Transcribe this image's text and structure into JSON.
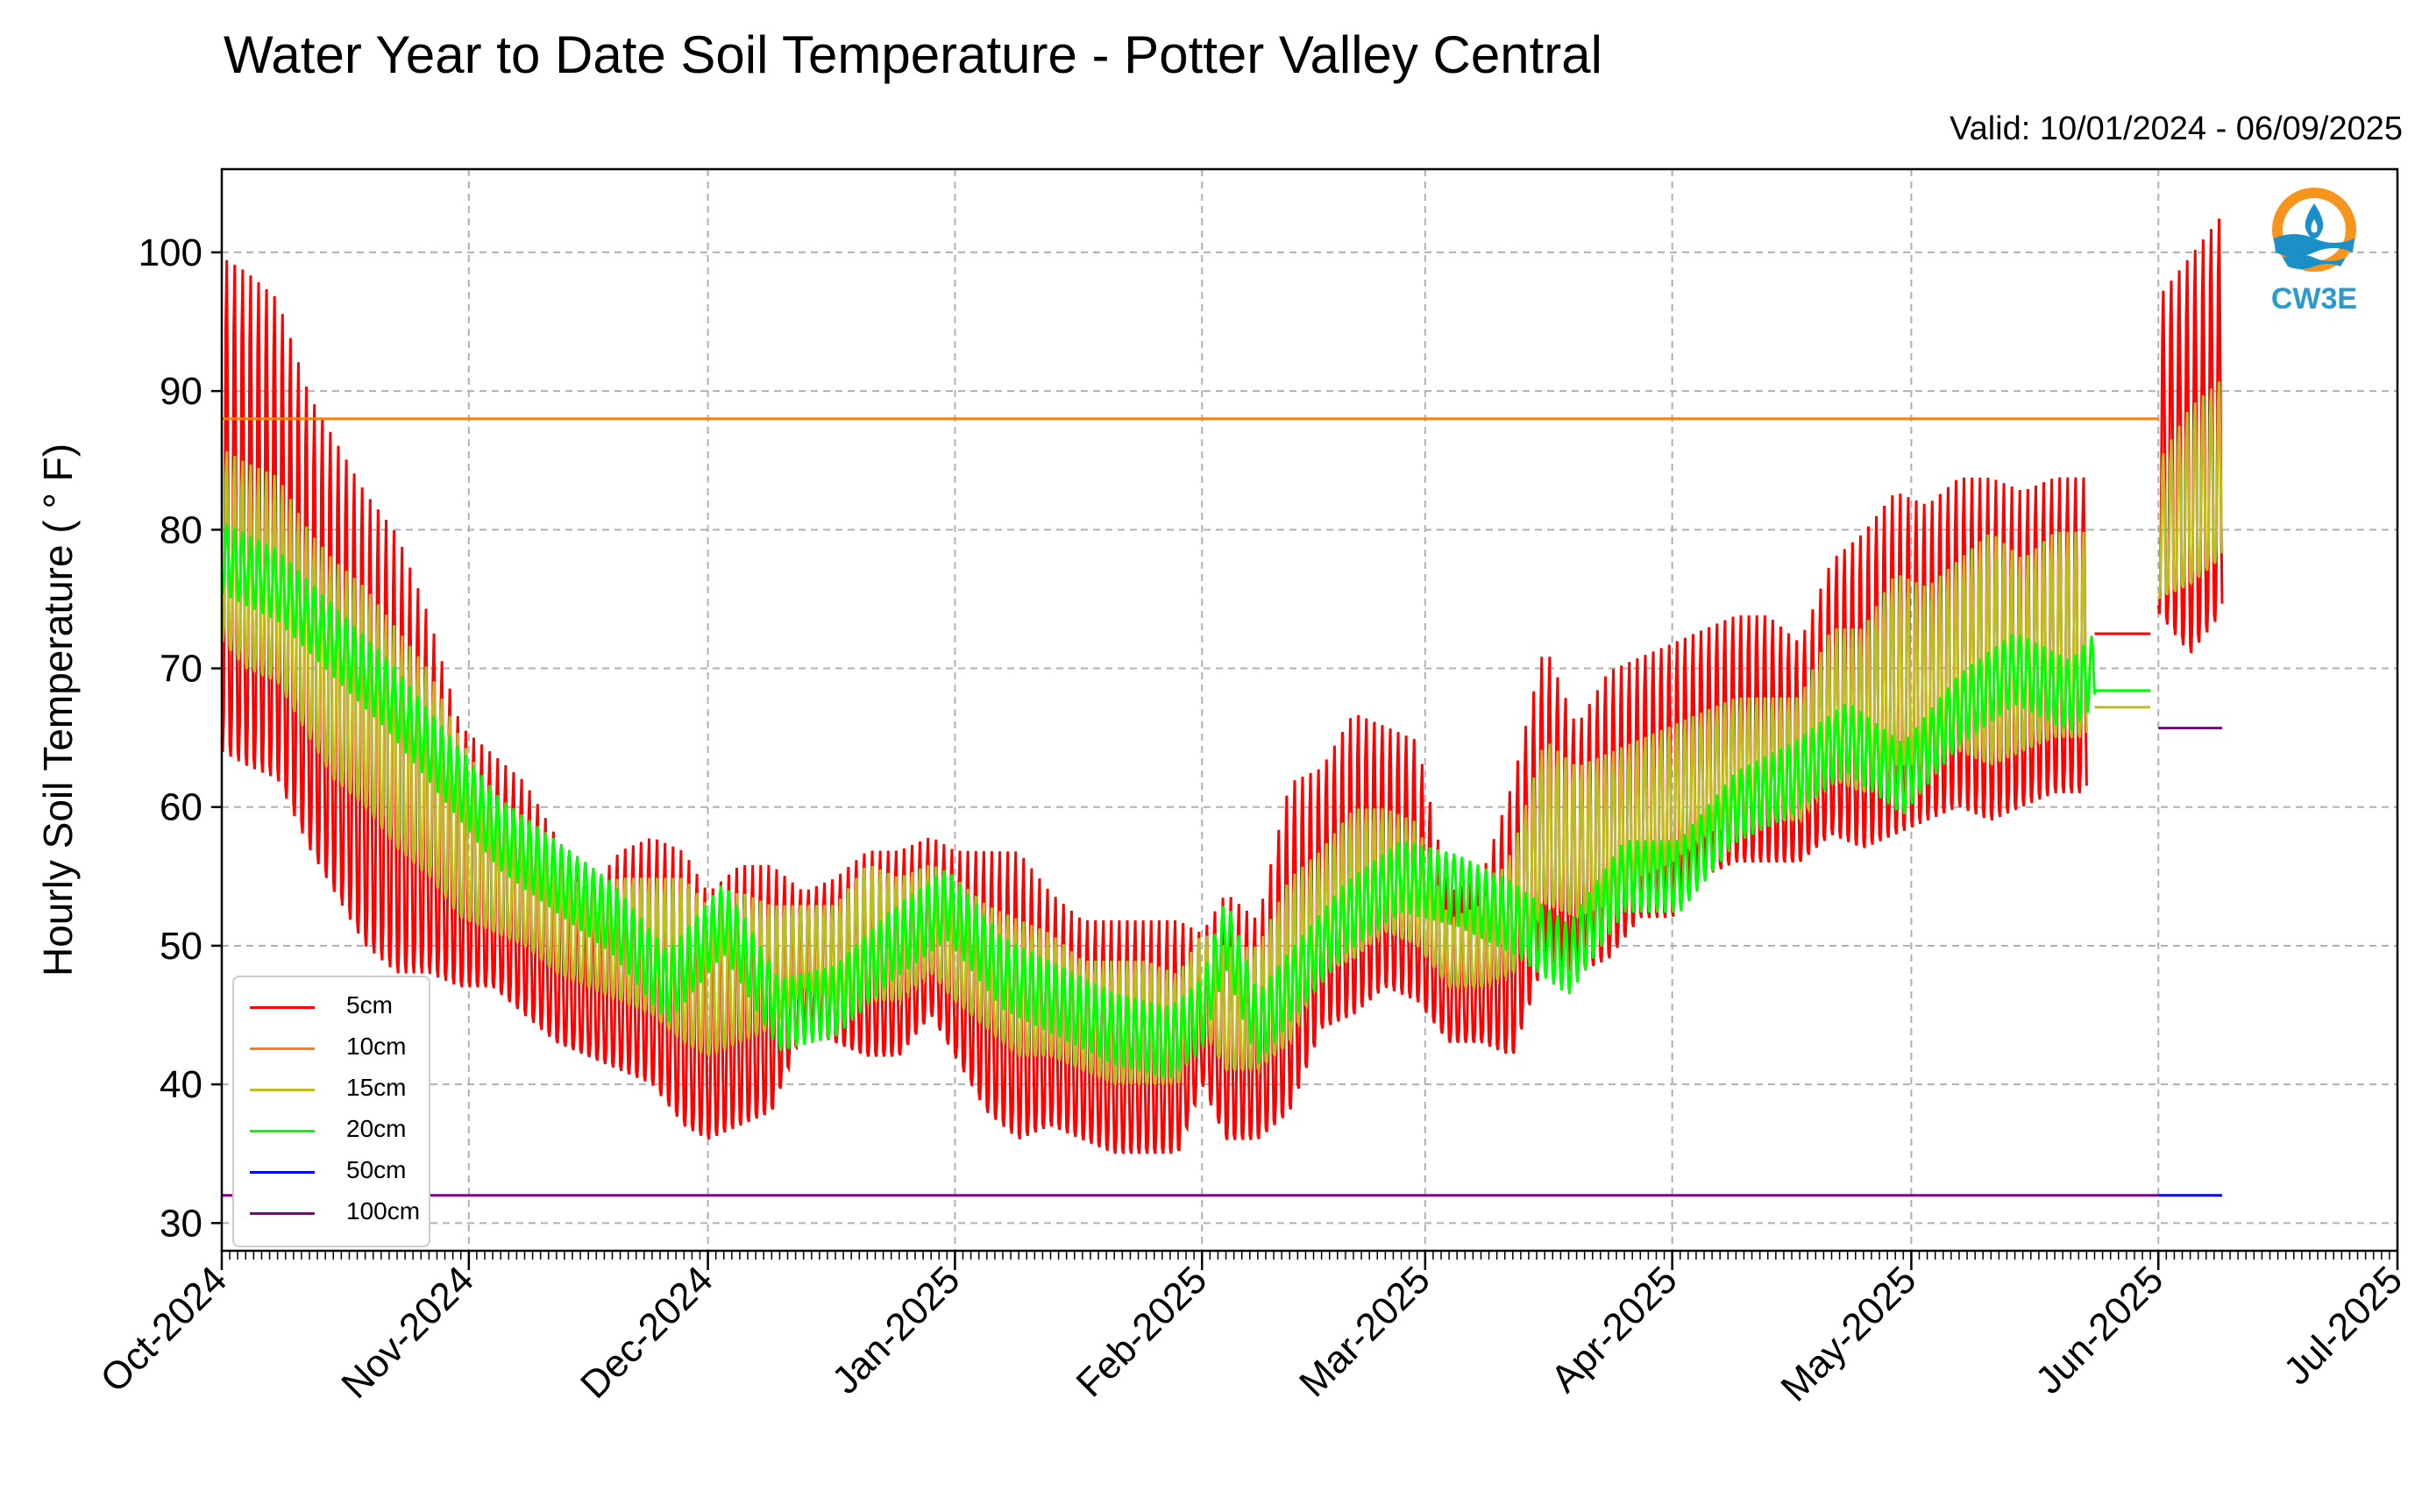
{
  "header": {
    "title": "Water Year to Date Soil Temperature - Potter Valley Central",
    "valid": "Valid: 10/01/2024 - 06/09/2025"
  },
  "logo": {
    "text": "CW3E",
    "icon": "water-drop-logo-icon"
  },
  "colors": {
    "5cm": "#ff0000",
    "10cm": "#ff7f0e",
    "15cm": "#bcbd22",
    "20cm": "#00ff00",
    "50cm": "#0000ff",
    "100cm": "#800080"
  },
  "chart_data": {
    "type": "line",
    "title": "Water Year to Date Soil Temperature - Potter Valley Central",
    "ylabel": "Hourly Soil Temperature ( ° F)",
    "xlabel": "",
    "ylim": [
      28,
      106
    ],
    "xlim": [
      "2024-10-01",
      "2025-07-01"
    ],
    "yticks": [
      30,
      40,
      50,
      60,
      70,
      80,
      90,
      100
    ],
    "xtick_labels": [
      "Oct-2024",
      "Nov-2024",
      "Dec-2024",
      "Jan-2025",
      "Feb-2025",
      "Mar-2025",
      "Apr-2025",
      "May-2025",
      "Jun-2025",
      "Jul-2025"
    ],
    "xtick_dates": [
      "2024-10-01",
      "2024-11-01",
      "2024-12-01",
      "2025-01-01",
      "2025-02-01",
      "2025-03-01",
      "2025-04-01",
      "2025-05-01",
      "2025-06-01",
      "2025-07-01"
    ],
    "grid": true,
    "legend_position": "lower-left",
    "envelope_5cm": {
      "dates": [
        "2024-10-01",
        "2024-10-04",
        "2024-10-08",
        "2024-10-12",
        "2024-10-15",
        "2024-10-19",
        "2024-10-23",
        "2024-10-27",
        "2024-10-31",
        "2024-11-04",
        "2024-11-08",
        "2024-11-12",
        "2024-11-16",
        "2024-11-20",
        "2024-11-24",
        "2024-11-28",
        "2024-12-01",
        "2024-12-05",
        "2024-12-09",
        "2024-12-13",
        "2024-12-17",
        "2024-12-21",
        "2024-12-25",
        "2024-12-29",
        "2025-01-01",
        "2025-01-05",
        "2025-01-09",
        "2025-01-13",
        "2025-01-17",
        "2025-01-21",
        "2025-01-25",
        "2025-01-29",
        "2025-02-01",
        "2025-02-04",
        "2025-02-08",
        "2025-02-12",
        "2025-02-16",
        "2025-02-20",
        "2025-02-24",
        "2025-02-28",
        "2025-03-04",
        "2025-03-08",
        "2025-03-12",
        "2025-03-16",
        "2025-03-20",
        "2025-03-24",
        "2025-03-28",
        "2025-04-01",
        "2025-04-05",
        "2025-04-09",
        "2025-04-13",
        "2025-04-17",
        "2025-04-21",
        "2025-04-25",
        "2025-04-29",
        "2025-05-03",
        "2025-05-07",
        "2025-05-11",
        "2025-05-15",
        "2025-05-19",
        "2025-05-23"
      ],
      "max": [
        100,
        99,
        97,
        90,
        87,
        83,
        80,
        74,
        66,
        64,
        62,
        58,
        54,
        57,
        58,
        57,
        54,
        56,
        56,
        54,
        55,
        57,
        57,
        58,
        57,
        57,
        57,
        54,
        52,
        52,
        52,
        52,
        51,
        54,
        52,
        62,
        63,
        67,
        66,
        65,
        54,
        55,
        62,
        72,
        66,
        70,
        71,
        72,
        73,
        74,
        74,
        72,
        78,
        80,
        83,
        82,
        84,
        84,
        83,
        84,
        84
      ],
      "min": [
        64,
        63,
        62,
        57,
        54,
        50,
        48,
        48,
        47,
        47,
        45,
        43,
        42,
        41,
        40,
        37,
        36,
        37,
        38,
        44,
        43,
        42,
        42,
        45,
        42,
        38,
        36,
        37,
        36,
        35,
        35,
        35,
        40,
        36,
        36,
        38,
        44,
        45,
        47,
        46,
        43,
        43,
        42,
        49,
        48,
        49,
        52,
        52,
        55,
        56,
        56,
        56,
        58,
        57,
        58,
        59,
        60,
        59,
        60,
        61,
        61
      ]
    },
    "envelope_15cm": {
      "max": [
        86,
        85,
        84,
        80,
        78,
        76,
        73,
        70,
        65,
        61,
        59,
        56,
        54,
        55,
        55,
        55,
        53,
        54,
        53,
        53,
        53,
        56,
        55,
        56,
        55,
        53,
        52,
        51,
        49,
        49,
        49,
        48,
        51,
        50,
        50,
        55,
        57,
        60,
        60,
        59,
        52,
        53,
        57,
        65,
        63,
        64,
        65,
        66,
        67,
        68,
        68,
        68,
        73,
        73,
        77,
        76,
        78,
        80,
        78,
        80,
        80
      ],
      "min": [
        72,
        70,
        69,
        65,
        62,
        60,
        57,
        55,
        52,
        51,
        50,
        48,
        47,
        46,
        45,
        43,
        42,
        43,
        44,
        47,
        46,
        46,
        46,
        48,
        46,
        44,
        42,
        42,
        41,
        40,
        40,
        40,
        44,
        41,
        41,
        43,
        48,
        49,
        51,
        50,
        47,
        47,
        48,
        53,
        52,
        53,
        55,
        56,
        58,
        59,
        59,
        59,
        62,
        61,
        63,
        63,
        64,
        63,
        64,
        65,
        65
      ]
    },
    "series": [
      {
        "name": "5cm",
        "color": "#ff0000",
        "dates": [
          "2025-05-24",
          "2025-05-31"
        ],
        "values": [
          72.5,
          72.5
        ],
        "dates_late": [
          "2025-06-01",
          "2025-06-05",
          "2025-06-09"
        ],
        "max_late": [
          97,
          100,
          103
        ],
        "min_late": [
          74,
          71,
          74
        ]
      },
      {
        "name": "10cm",
        "color": "#ff7f0e",
        "dates": [
          "2024-10-01",
          "2025-06-01"
        ],
        "values": [
          88,
          88
        ]
      },
      {
        "name": "15cm",
        "color": "#bcbd22",
        "dates": [
          "2025-05-24",
          "2025-05-31"
        ],
        "values": [
          67.2,
          67.2
        ],
        "dates_late": [
          "2025-06-01",
          "2025-06-05",
          "2025-06-09"
        ],
        "max_late": [
          85,
          89,
          91
        ],
        "min_late": [
          75,
          76,
          78
        ]
      },
      {
        "name": "20cm",
        "color": "#00ff00",
        "dates": [
          "2025-05-24",
          "2025-05-31"
        ],
        "values": [
          68.4,
          68.4
        ],
        "center_dates": [
          "2024-10-01",
          "2024-10-08",
          "2024-10-15",
          "2024-10-22",
          "2024-10-29",
          "2024-11-05",
          "2024-11-12",
          "2024-11-19",
          "2024-11-26",
          "2024-12-03",
          "2024-12-10",
          "2024-12-17",
          "2024-12-24",
          "2024-12-31",
          "2025-01-07",
          "2025-01-14",
          "2025-01-21",
          "2025-01-28",
          "2025-02-01",
          "2025-02-04",
          "2025-02-08",
          "2025-02-12",
          "2025-02-19",
          "2025-02-26",
          "2025-03-05",
          "2025-03-12",
          "2025-03-19",
          "2025-03-26",
          "2025-04-02",
          "2025-04-09",
          "2025-04-16",
          "2025-04-23",
          "2025-04-30",
          "2025-05-07",
          "2025-05-14",
          "2025-05-21",
          "2025-05-24"
        ],
        "center": [
          78,
          76,
          72,
          68,
          63,
          58,
          55,
          52,
          47,
          52,
          45,
          46,
          50,
          53,
          48,
          46,
          44,
          43,
          45,
          51,
          44,
          47,
          52,
          55,
          54,
          52,
          49,
          55,
          55,
          60,
          62,
          65,
          62,
          67,
          70,
          68,
          70
        ]
      },
      {
        "name": "50cm",
        "color": "#0000ff",
        "dates": [
          "2025-06-01",
          "2025-06-09"
        ],
        "values": [
          32,
          32
        ]
      },
      {
        "name": "100cm",
        "color": "#800080",
        "dates": [
          "2024-10-01",
          "2025-06-01"
        ],
        "values": [
          32,
          32
        ],
        "dates_late": [
          "2025-06-01",
          "2025-06-09"
        ],
        "values_late": [
          65.7,
          65.7
        ]
      }
    ]
  },
  "legend": [
    {
      "label": "5cm",
      "color": "#ff0000"
    },
    {
      "label": "10cm",
      "color": "#ff7f0e"
    },
    {
      "label": "15cm",
      "color": "#bcbd22"
    },
    {
      "label": "20cm",
      "color": "#00ff00"
    },
    {
      "label": "50cm",
      "color": "#0000ff"
    },
    {
      "label": "100cm",
      "color": "#800080"
    }
  ]
}
